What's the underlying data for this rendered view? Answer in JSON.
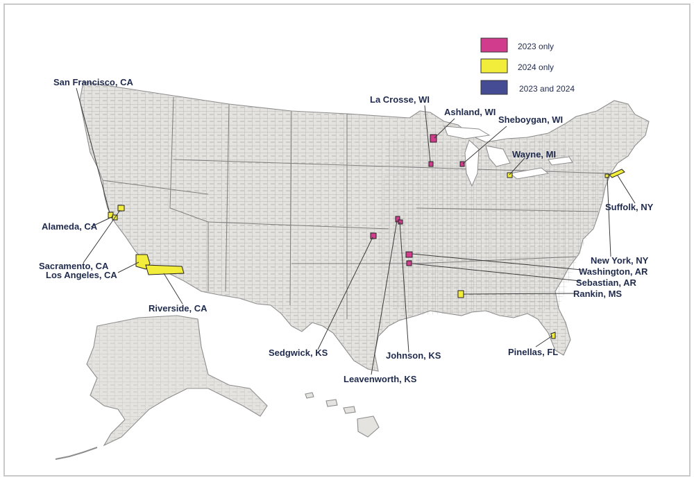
{
  "legend": {
    "items": [
      {
        "label": "2023 only",
        "color": "#d23c8c"
      },
      {
        "label": "2024 only",
        "color": "#f2ec3a"
      },
      {
        "label": "2023 and 2024",
        "color": "#464c94"
      }
    ]
  },
  "counties": [
    {
      "label": "San Francisco, CA",
      "category": "2024 only"
    },
    {
      "label": "Alameda, CA",
      "category": "2024 only"
    },
    {
      "label": "Sacramento, CA",
      "category": "2024 only"
    },
    {
      "label": "Los Angeles, CA",
      "category": "2024 only"
    },
    {
      "label": "Riverside, CA",
      "category": "2024 only"
    },
    {
      "label": "La Crosse, WI",
      "category": "2023 only"
    },
    {
      "label": "Ashland, WI",
      "category": "2023 only"
    },
    {
      "label": "Sheboygan, WI",
      "category": "2023 only"
    },
    {
      "label": "Wayne, MI",
      "category": "2024 only"
    },
    {
      "label": "Suffolk, NY",
      "category": "2024 only"
    },
    {
      "label": "New York, NY",
      "category": "2024 only"
    },
    {
      "label": "Washington, AR",
      "category": "2023 only"
    },
    {
      "label": "Sebastian, AR",
      "category": "2023 only"
    },
    {
      "label": "Rankin, MS",
      "category": "2024 only"
    },
    {
      "label": "Pinellas, FL",
      "category": "2024 only"
    },
    {
      "label": "Sedgwick, KS",
      "category": "2023 only"
    },
    {
      "label": "Johnson, KS",
      "category": "2023 only"
    },
    {
      "label": "Leavenworth, KS",
      "category": "2023 only"
    }
  ]
}
